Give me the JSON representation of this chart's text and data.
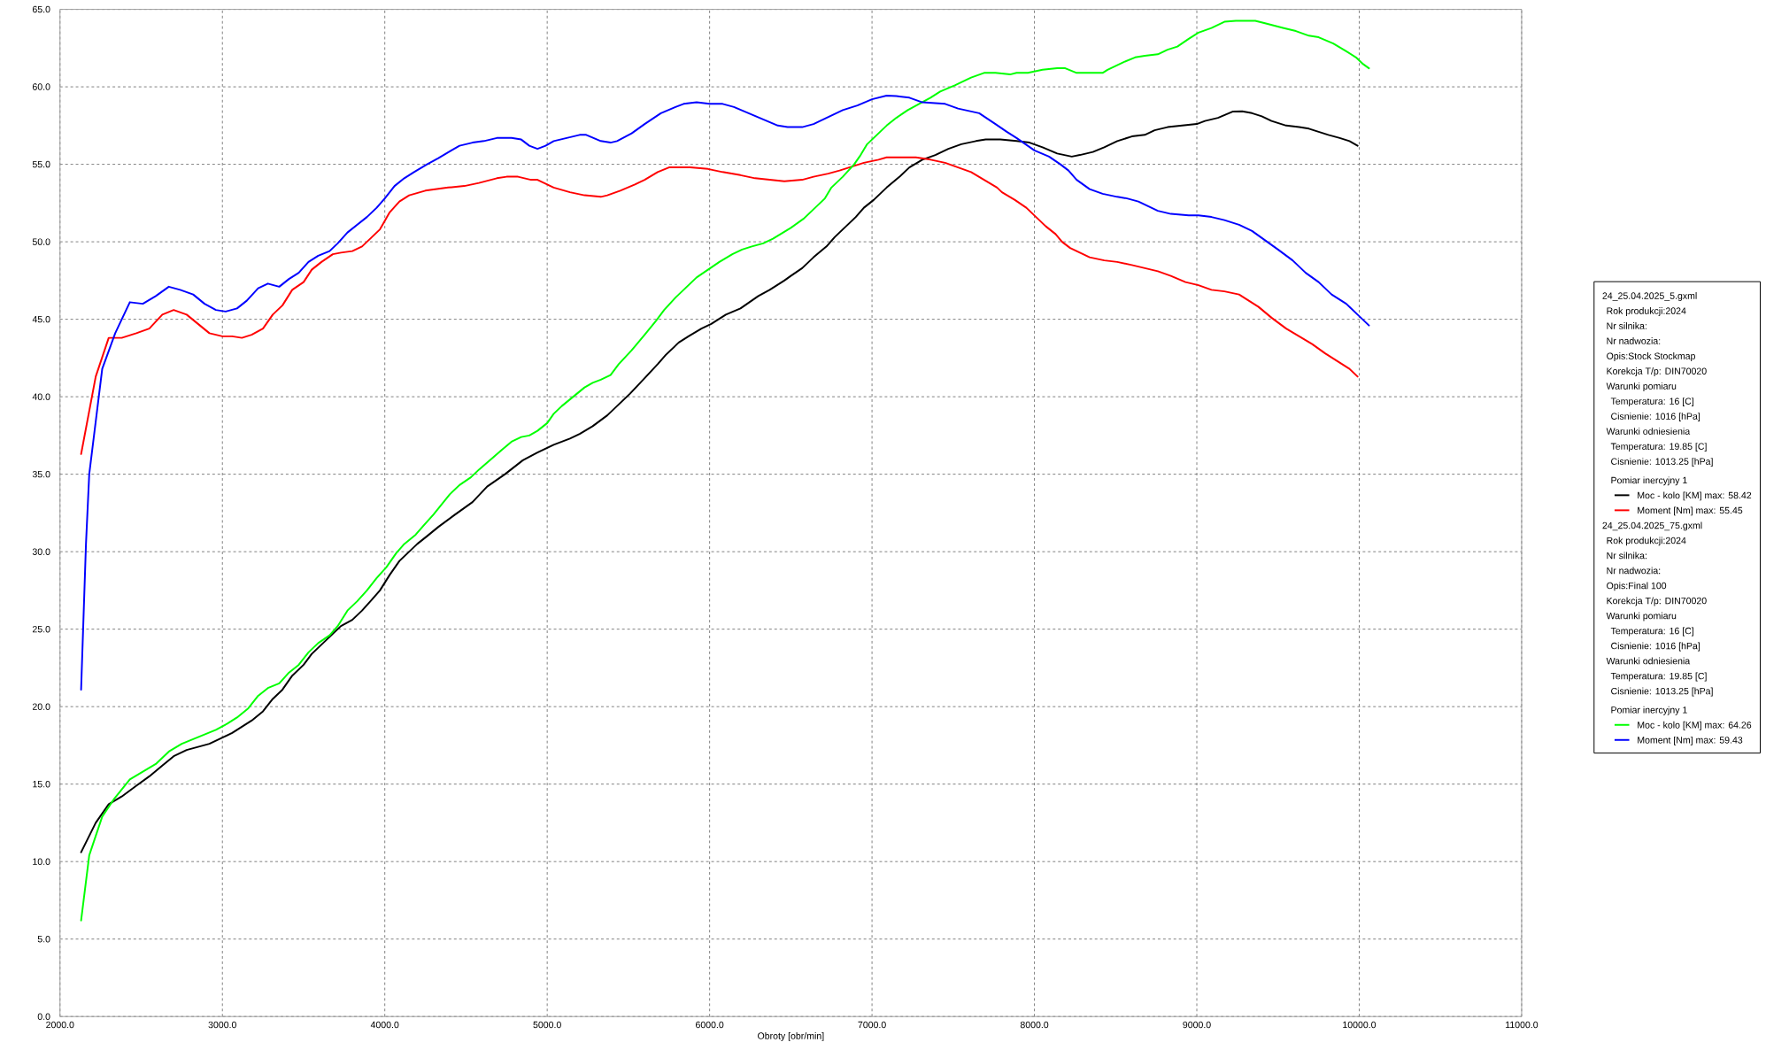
{
  "chart_data": {
    "type": "line",
    "xlabel": "Obroty [obr/min]",
    "xlim": [
      2000,
      11000
    ],
    "ylim": [
      0,
      65
    ],
    "xticks": [
      {
        "value": 2000,
        "label": "2000.0"
      },
      {
        "value": 3000,
        "label": "3000.0"
      },
      {
        "value": 4000,
        "label": "4000.0"
      },
      {
        "value": 5000,
        "label": "5000.0"
      },
      {
        "value": 6000,
        "label": "6000.0"
      },
      {
        "value": 7000,
        "label": "7000.0"
      },
      {
        "value": 8000,
        "label": "8000.0"
      },
      {
        "value": 9000,
        "label": "9000.0"
      },
      {
        "value": 10000,
        "label": "10000.0"
      },
      {
        "value": 11000,
        "label": "11000.0"
      }
    ],
    "yticks": [
      {
        "value": 0,
        "label": "0.0"
      },
      {
        "value": 5,
        "label": "5.0"
      },
      {
        "value": 10,
        "label": "10.0"
      },
      {
        "value": 15,
        "label": "15.0"
      },
      {
        "value": 20,
        "label": "20.0"
      },
      {
        "value": 25,
        "label": "25.0"
      },
      {
        "value": 30,
        "label": "30.0"
      },
      {
        "value": 35,
        "label": "35.0"
      },
      {
        "value": 40,
        "label": "40.0"
      },
      {
        "value": 45,
        "label": "45.0"
      },
      {
        "value": 50,
        "label": "50.0"
      },
      {
        "value": 55,
        "label": "55.0"
      },
      {
        "value": 60,
        "label": "60.0"
      },
      {
        "value": 65,
        "label": "65.0"
      }
    ],
    "grid": true,
    "legend": "right",
    "line_style": "solid",
    "annotations": [
      "24_25.04.2025_5.gxml",
      "Rok produkcji:2024",
      "Nr silnika:",
      "Nr nadwozia:",
      "Opis:Stock Stockmap",
      "Korekcja T/p: DIN70020",
      "Warunki pomiaru",
      "Temperatura: 16 [C]",
      "Cisnienie: 1016 [hPa]",
      "Warunki odniesienia",
      "Temperatura: 19.85 [C]",
      "Cisnienie: 1013.25 [hPa]",
      "Pomiar inercyjny 1",
      "24_25.04.2025_75.gxml",
      "Rok produkcji:2024",
      "Nr silnika:",
      "Nr nadwozia:",
      "Opis:Final 100",
      "Korekcja T/p: DIN70020",
      "Warunki pomiaru",
      "Temperatura: 16 [C]",
      "Cisnienie: 1016 [hPa]",
      "Warunki odniesienia",
      "Temperatura: 19.85 [C]",
      "Cisnienie: 1013.25 [hPa]",
      "Pomiar inercyjny 1"
    ],
    "series": [
      {
        "name": "Moc - kolo [KM] max: 58.42",
        "color": "#000000",
        "x": [
          2130,
          2220,
          2300,
          2380,
          2470,
          2550,
          2630,
          2700,
          2780,
          2850,
          2920,
          3000,
          3060,
          3120,
          3180,
          3250,
          3310,
          3370,
          3430,
          3500,
          3550,
          3610,
          3680,
          3730,
          3800,
          3860,
          3920,
          3970,
          4030,
          4090,
          4150,
          4200,
          4260,
          4330,
          4420,
          4540,
          4630,
          4740,
          4850,
          4940,
          5040,
          5090,
          5140,
          5200,
          5280,
          5370,
          5440,
          5510,
          5600,
          5680,
          5730,
          5810,
          5870,
          5950,
          6010,
          6100,
          6190,
          6300,
          6370,
          6460,
          6500,
          6570,
          6640,
          6720,
          6770,
          6840,
          6900,
          6950,
          7010,
          7090,
          7170,
          7230,
          7310,
          7390,
          7470,
          7550,
          7640,
          7700,
          7790,
          7890,
          7970,
          8050,
          8140,
          8230,
          8280,
          8360,
          8430,
          8510,
          8600,
          8680,
          8740,
          8820,
          8910,
          9000,
          9050,
          9130,
          9220,
          9280,
          9340,
          9400,
          9460,
          9550,
          9630,
          9690,
          9750,
          9810,
          9880,
          9940,
          9990
        ],
        "values": [
          10.6,
          12.5,
          13.7,
          14.2,
          14.9,
          15.5,
          16.2,
          16.8,
          17.2,
          17.4,
          17.6,
          18.0,
          18.3,
          18.7,
          19.1,
          19.7,
          20.5,
          21.1,
          22.0,
          22.7,
          23.4,
          24.0,
          24.7,
          25.2,
          25.6,
          26.2,
          26.9,
          27.5,
          28.5,
          29.4,
          30.0,
          30.5,
          31.0,
          31.6,
          32.3,
          33.2,
          34.2,
          35.0,
          35.9,
          36.4,
          36.9,
          37.1,
          37.3,
          37.6,
          38.1,
          38.8,
          39.5,
          40.2,
          41.2,
          42.1,
          42.7,
          43.5,
          43.9,
          44.4,
          44.7,
          45.3,
          45.7,
          46.5,
          46.9,
          47.5,
          47.8,
          48.3,
          49.0,
          49.7,
          50.3,
          51.0,
          51.6,
          52.2,
          52.7,
          53.5,
          54.2,
          54.8,
          55.3,
          55.6,
          56.0,
          56.3,
          56.5,
          56.6,
          56.6,
          56.5,
          56.4,
          56.1,
          55.7,
          55.5,
          55.6,
          55.8,
          56.1,
          56.5,
          56.8,
          56.9,
          57.2,
          57.4,
          57.5,
          57.6,
          57.8,
          58.0,
          58.4,
          58.42,
          58.3,
          58.1,
          57.8,
          57.5,
          57.4,
          57.3,
          57.1,
          56.9,
          56.7,
          56.5,
          56.2
        ]
      },
      {
        "name": "Moment [Nm] max: 55.45",
        "color": "#ff0000",
        "x": [
          2130,
          2220,
          2300,
          2380,
          2470,
          2550,
          2630,
          2700,
          2780,
          2850,
          2920,
          3000,
          3060,
          3120,
          3180,
          3250,
          3310,
          3370,
          3430,
          3500,
          3550,
          3610,
          3680,
          3730,
          3800,
          3860,
          3920,
          3970,
          4030,
          4090,
          4150,
          4250,
          4390,
          4490,
          4580,
          4690,
          4750,
          4820,
          4900,
          4940,
          5000,
          5040,
          5140,
          5230,
          5330,
          5370,
          5450,
          5540,
          5600,
          5680,
          5750,
          5880,
          5990,
          6080,
          6190,
          6280,
          6370,
          6460,
          6570,
          6640,
          6730,
          6800,
          6890,
          6950,
          7040,
          7090,
          7270,
          7360,
          7450,
          7530,
          7610,
          7690,
          7770,
          7800,
          7880,
          7950,
          8000,
          8070,
          8130,
          8170,
          8220,
          8280,
          8340,
          8430,
          8510,
          8600,
          8680,
          8760,
          8840,
          8930,
          9010,
          9090,
          9170,
          9260,
          9320,
          9380,
          9460,
          9550,
          9630,
          9710,
          9790,
          9880,
          9940,
          9990
        ],
        "values": [
          36.3,
          41.3,
          43.8,
          43.8,
          44.1,
          44.4,
          45.3,
          45.6,
          45.3,
          44.7,
          44.1,
          43.9,
          43.9,
          43.8,
          44.0,
          44.4,
          45.3,
          45.9,
          46.9,
          47.4,
          48.2,
          48.7,
          49.2,
          49.3,
          49.4,
          49.7,
          50.3,
          50.8,
          51.9,
          52.6,
          53.0,
          53.3,
          53.5,
          53.6,
          53.8,
          54.1,
          54.2,
          54.2,
          54.0,
          54.0,
          53.7,
          53.5,
          53.2,
          53.0,
          52.9,
          53.0,
          53.3,
          53.7,
          54.0,
          54.5,
          54.8,
          54.8,
          54.7,
          54.5,
          54.3,
          54.1,
          54.0,
          53.9,
          54.0,
          54.2,
          54.4,
          54.6,
          54.9,
          55.1,
          55.3,
          55.45,
          55.45,
          55.3,
          55.1,
          54.8,
          54.5,
          54.0,
          53.5,
          53.2,
          52.7,
          52.2,
          51.7,
          51.0,
          50.5,
          50.0,
          49.6,
          49.3,
          49.0,
          48.8,
          48.7,
          48.5,
          48.3,
          48.1,
          47.8,
          47.4,
          47.2,
          46.9,
          46.8,
          46.6,
          46.2,
          45.8,
          45.1,
          44.4,
          43.9,
          43.4,
          42.8,
          42.2,
          41.8,
          41.3
        ]
      },
      {
        "name": "Moc - kolo [KM] max: 64.26",
        "color": "#00ff00",
        "x": [
          2130,
          2180,
          2260,
          2330,
          2430,
          2510,
          2590,
          2670,
          2750,
          2820,
          2890,
          2960,
          3030,
          3090,
          3160,
          3220,
          3280,
          3350,
          3410,
          3470,
          3530,
          3590,
          3660,
          3710,
          3770,
          3830,
          3890,
          3950,
          4010,
          4070,
          4120,
          4190,
          4240,
          4300,
          4400,
          4460,
          4530,
          4580,
          4690,
          4780,
          4840,
          4890,
          4940,
          5000,
          5040,
          5090,
          5160,
          5230,
          5280,
          5330,
          5390,
          5440,
          5520,
          5600,
          5670,
          5720,
          5790,
          5860,
          5920,
          5990,
          6060,
          6140,
          6200,
          6260,
          6330,
          6390,
          6500,
          6580,
          6650,
          6710,
          6750,
          6820,
          6890,
          6930,
          6970,
          7030,
          7090,
          7150,
          7220,
          7290,
          7360,
          7420,
          7510,
          7610,
          7690,
          7760,
          7850,
          7890,
          7960,
          8050,
          8140,
          8190,
          8260,
          8320,
          8420,
          8450,
          8510,
          8550,
          8620,
          8680,
          8760,
          8820,
          8880,
          8950,
          9010,
          9090,
          9170,
          9240,
          9360,
          9420,
          9530,
          9610,
          9690,
          9750,
          9840,
          9920,
          9980,
          10020,
          10060
        ],
        "values": [
          6.2,
          10.4,
          12.9,
          14.0,
          15.3,
          15.8,
          16.3,
          17.1,
          17.6,
          17.9,
          18.2,
          18.5,
          18.9,
          19.3,
          19.9,
          20.7,
          21.2,
          21.5,
          22.2,
          22.7,
          23.5,
          24.1,
          24.6,
          25.2,
          26.2,
          26.8,
          27.5,
          28.3,
          29.0,
          29.9,
          30.5,
          31.1,
          31.7,
          32.4,
          33.7,
          34.3,
          34.8,
          35.3,
          36.3,
          37.1,
          37.4,
          37.5,
          37.8,
          38.3,
          38.9,
          39.4,
          40.0,
          40.6,
          40.9,
          41.1,
          41.4,
          42.1,
          43.0,
          44.0,
          44.9,
          45.6,
          46.4,
          47.1,
          47.7,
          48.2,
          48.7,
          49.2,
          49.5,
          49.7,
          49.9,
          50.2,
          50.9,
          51.5,
          52.2,
          52.8,
          53.5,
          54.2,
          55.0,
          55.6,
          56.3,
          56.9,
          57.5,
          58.0,
          58.5,
          58.9,
          59.3,
          59.7,
          60.1,
          60.6,
          60.9,
          60.9,
          60.8,
          60.9,
          60.9,
          61.1,
          61.2,
          61.2,
          60.9,
          60.9,
          60.9,
          61.1,
          61.4,
          61.6,
          61.9,
          62.0,
          62.1,
          62.4,
          62.6,
          63.1,
          63.5,
          63.8,
          64.2,
          64.26,
          64.26,
          64.1,
          63.8,
          63.6,
          63.3,
          63.2,
          62.8,
          62.3,
          61.9,
          61.5,
          61.2
        ]
      },
      {
        "name": "Moment [Nm] max: 59.43",
        "color": "#0000ff",
        "x": [
          2130,
          2160,
          2180,
          2260,
          2340,
          2430,
          2510,
          2590,
          2670,
          2740,
          2820,
          2890,
          2960,
          3020,
          3090,
          3150,
          3220,
          3280,
          3350,
          3410,
          3470,
          3530,
          3590,
          3660,
          3710,
          3770,
          3890,
          3950,
          4000,
          4060,
          4120,
          4180,
          4260,
          4330,
          4410,
          4460,
          4540,
          4610,
          4690,
          4780,
          4840,
          4890,
          4940,
          4990,
          5040,
          5120,
          5200,
          5240,
          5330,
          5390,
          5430,
          5520,
          5600,
          5700,
          5790,
          5840,
          5920,
          6000,
          6080,
          6150,
          6240,
          6330,
          6420,
          6480,
          6570,
          6640,
          6740,
          6820,
          6910,
          7000,
          7090,
          7150,
          7230,
          7310,
          7450,
          7530,
          7660,
          7760,
          7830,
          7890,
          8000,
          8090,
          8160,
          8210,
          8260,
          8340,
          8420,
          8510,
          8570,
          8640,
          8700,
          8760,
          8840,
          8950,
          9010,
          9090,
          9170,
          9260,
          9340,
          9420,
          9500,
          9590,
          9670,
          9750,
          9830,
          9920,
          10000,
          10060
        ],
        "values": [
          21.1,
          30.5,
          35.0,
          41.8,
          44.1,
          46.1,
          46.0,
          46.5,
          47.1,
          46.9,
          46.6,
          46.0,
          45.6,
          45.5,
          45.7,
          46.2,
          47.0,
          47.3,
          47.1,
          47.6,
          48.0,
          48.7,
          49.1,
          49.4,
          49.9,
          50.6,
          51.6,
          52.2,
          52.8,
          53.6,
          54.1,
          54.5,
          55.0,
          55.4,
          55.9,
          56.2,
          56.4,
          56.5,
          56.7,
          56.7,
          56.6,
          56.2,
          56.0,
          56.2,
          56.5,
          56.7,
          56.9,
          56.9,
          56.5,
          56.4,
          56.5,
          57.0,
          57.6,
          58.3,
          58.7,
          58.9,
          59.0,
          58.9,
          58.9,
          58.7,
          58.3,
          57.9,
          57.5,
          57.4,
          57.4,
          57.6,
          58.1,
          58.5,
          58.8,
          59.2,
          59.43,
          59.4,
          59.3,
          59.0,
          58.9,
          58.6,
          58.3,
          57.6,
          57.1,
          56.7,
          55.9,
          55.5,
          55.0,
          54.6,
          54.0,
          53.4,
          53.1,
          52.9,
          52.8,
          52.6,
          52.3,
          52.0,
          51.8,
          51.7,
          51.7,
          51.6,
          51.4,
          51.1,
          50.7,
          50.1,
          49.5,
          48.8,
          48.0,
          47.4,
          46.6,
          46.0,
          45.2,
          44.6
        ]
      }
    ]
  }
}
